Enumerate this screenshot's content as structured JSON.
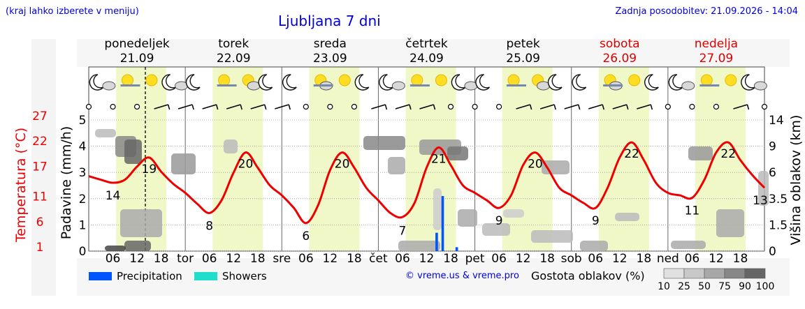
{
  "header": {
    "region_hint": "(kraj lahko izberete v meniju)",
    "title": "Ljubljana 7 dni",
    "updated": "Zadnja posodobitev: 21.09.2026 - 14:04"
  },
  "footer": {
    "copyright": "© vreme.us & vreme.pro",
    "legend_precip": "Precipitation",
    "legend_showers": "Showers",
    "cloud_density_label": "Gostota oblakov (%)",
    "cloud_density_ticks": [
      "10",
      "25",
      "50",
      "75",
      "90",
      "100"
    ]
  },
  "days": [
    {
      "name": "ponedeljek",
      "date": "21.09",
      "weekend": false,
      "abbr": ""
    },
    {
      "name": "torek",
      "date": "22.09",
      "weekend": false,
      "abbr": "tor"
    },
    {
      "name": "sreda",
      "date": "23.09",
      "weekend": false,
      "abbr": "sre"
    },
    {
      "name": "četrtek",
      "date": "24.09",
      "weekend": false,
      "abbr": "čet"
    },
    {
      "name": "petek",
      "date": "25.09",
      "weekend": false,
      "abbr": "pet"
    },
    {
      "name": "sobota",
      "date": "26.09",
      "weekend": true,
      "abbr": "sob"
    },
    {
      "name": "nedelja",
      "date": "27.09",
      "weekend": true,
      "abbr": "ned"
    }
  ],
  "colors": {
    "temperature": "#ee0000",
    "precipitation": "#0055ff",
    "showers": "#22ddcc",
    "daylight": "#f0f8c8",
    "header_text": "#0000dd",
    "weekend": "#dd0000"
  },
  "chart_data": {
    "type": "line",
    "x_unit": "hours from 00:00 Monday 21.09",
    "hour_tick_labels": [
      "06",
      "12",
      "18"
    ],
    "temperature": {
      "name": "Temperatura (°C)",
      "label": "Temperatura (°C)",
      "axis_ticks": [
        1,
        6,
        11,
        17,
        22,
        27
      ],
      "annotations": [
        {
          "x": 6,
          "v": 14
        },
        {
          "x": 15,
          "v": 19
        },
        {
          "x": 30,
          "v": 8
        },
        {
          "x": 39,
          "v": 20
        },
        {
          "x": 54,
          "v": 6
        },
        {
          "x": 63,
          "v": 20
        },
        {
          "x": 78,
          "v": 7
        },
        {
          "x": 87,
          "v": 21
        },
        {
          "x": 102,
          "v": 9
        },
        {
          "x": 111,
          "v": 20
        },
        {
          "x": 126,
          "v": 9
        },
        {
          "x": 135,
          "v": 22
        },
        {
          "x": 150,
          "v": 11
        },
        {
          "x": 159,
          "v": 22
        },
        {
          "x": 168,
          "v": 13
        }
      ],
      "points": [
        [
          0,
          15.3
        ],
        [
          3,
          14.6
        ],
        [
          6,
          14.0
        ],
        [
          9,
          14.6
        ],
        [
          12,
          17.2
        ],
        [
          15,
          19.0
        ],
        [
          18,
          16.2
        ],
        [
          21,
          13.8
        ],
        [
          24,
          12.0
        ],
        [
          27,
          9.8
        ],
        [
          30,
          8.0
        ],
        [
          33,
          10.5
        ],
        [
          36,
          16.0
        ],
        [
          39,
          20.0
        ],
        [
          42,
          17.0
        ],
        [
          45,
          13.5
        ],
        [
          48,
          11.5
        ],
        [
          51,
          9.0
        ],
        [
          54,
          6.0
        ],
        [
          57,
          9.5
        ],
        [
          60,
          16.5
        ],
        [
          63,
          20.0
        ],
        [
          66,
          17.0
        ],
        [
          69,
          13.0
        ],
        [
          72,
          10.5
        ],
        [
          75,
          8.0
        ],
        [
          78,
          7.2
        ],
        [
          81,
          10.0
        ],
        [
          84,
          17.0
        ],
        [
          87,
          21.0
        ],
        [
          90,
          17.5
        ],
        [
          93,
          13.5
        ],
        [
          96,
          12.0
        ],
        [
          99,
          10.5
        ],
        [
          102,
          9.0
        ],
        [
          105,
          11.5
        ],
        [
          108,
          17.5
        ],
        [
          111,
          20.0
        ],
        [
          114,
          17.0
        ],
        [
          117,
          13.0
        ],
        [
          120,
          11.5
        ],
        [
          123,
          10.0
        ],
        [
          126,
          9.0
        ],
        [
          129,
          13.0
        ],
        [
          132,
          19.0
        ],
        [
          135,
          22.0
        ],
        [
          138,
          18.5
        ],
        [
          141,
          14.0
        ],
        [
          144,
          12.0
        ],
        [
          147,
          11.5
        ],
        [
          150,
          11.0
        ],
        [
          153,
          14.5
        ],
        [
          156,
          20.0
        ],
        [
          159,
          22.0
        ],
        [
          162,
          18.5
        ],
        [
          165,
          15.5
        ],
        [
          168,
          13.0
        ]
      ]
    },
    "precipitation": {
      "name": "Precipitation",
      "label": "Padavine (mm/h)",
      "ylim": [
        0,
        5
      ],
      "bars": [
        {
          "x": 86.5,
          "value": 0.7
        },
        {
          "x": 88.0,
          "value": 2.1
        },
        {
          "x": 91.5,
          "value": 0.15
        }
      ]
    },
    "showers": {
      "name": "Showers",
      "bars": []
    },
    "cloud_height": {
      "label": "Višina oblakov (km)",
      "ticks": [
        0,
        1.5,
        3.5,
        6.0,
        9.0,
        14
      ]
    },
    "current_time_x": 14.07
  }
}
